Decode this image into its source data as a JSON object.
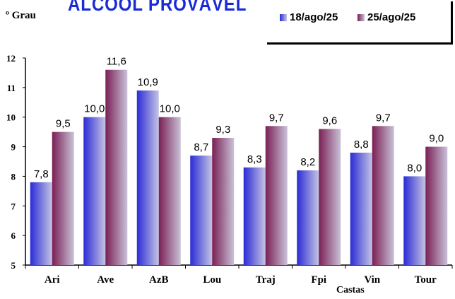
{
  "chart_data": {
    "type": "bar",
    "title": "ÁLCOOL PROVÁVEL",
    "ylabel": "º Grau",
    "xlabel": "Castas",
    "categories": [
      "Ari",
      "Ave",
      "AzB",
      "Lou",
      "Traj",
      "Fpi",
      "Vin",
      "Tour"
    ],
    "series": [
      {
        "name": "18/ago/25",
        "values": [
          7.8,
          10.0,
          10.9,
          8.7,
          8.3,
          8.2,
          8.8,
          8.0
        ],
        "labels": [
          "7,8",
          "10,0",
          "10,9",
          "8,7",
          "8,3",
          "8,2",
          "8,8",
          "8,0"
        ],
        "color_start": "#2b2bd6",
        "color_end": "#c4c4e4"
      },
      {
        "name": "25/ago/25",
        "values": [
          9.5,
          11.6,
          10.0,
          9.3,
          9.7,
          9.6,
          9.7,
          9.0
        ],
        "labels": [
          "9,5",
          "11,6",
          "10,0",
          "9,3",
          "9,7",
          "9,6",
          "9,7",
          "9,0"
        ],
        "color_start": "#7a1f55",
        "color_end": "#c9c2d8"
      }
    ],
    "ylim": [
      5,
      12
    ],
    "yticks": [
      5,
      6,
      7,
      8,
      9,
      10,
      11,
      12
    ],
    "grid": false,
    "legend_position": "top-right"
  }
}
